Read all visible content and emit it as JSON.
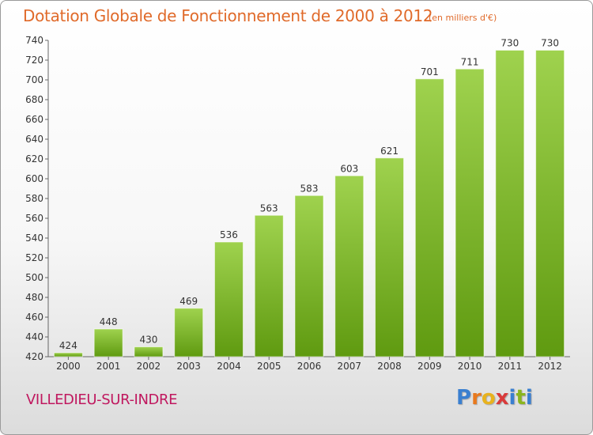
{
  "title": "Dotation Globale de Fonctionnement de 2000 à 2012",
  "subtitle": "(en milliers d'€)",
  "commune": "VILLEDIEU-SUR-INDRE",
  "logo": {
    "text": "Proxiti",
    "letter_colors": [
      "#3a7fd0",
      "#e8791e",
      "#e8b21e",
      "#d93a3a",
      "#3a7fd0",
      "#8ab51e",
      "#3a7fd0"
    ]
  },
  "colors": {
    "title": "#e06a2a",
    "commune": "#c0185f",
    "bar_top": "#9fd24e",
    "bar_bottom": "#5f9a10",
    "axis": "#666666"
  },
  "chart_data": {
    "type": "bar",
    "categories": [
      "2000",
      "2001",
      "2002",
      "2003",
      "2004",
      "2005",
      "2006",
      "2007",
      "2008",
      "2009",
      "2010",
      "2011",
      "2012"
    ],
    "values": [
      424,
      448,
      430,
      469,
      536,
      563,
      583,
      603,
      621,
      701,
      711,
      730,
      730
    ],
    "data_labels": [
      "424",
      "448",
      "430",
      "469",
      "536",
      "563",
      "583",
      "603",
      "621",
      "701",
      "711",
      "730",
      "730"
    ],
    "title": "Dotation Globale de Fonctionnement de 2000 à 2012",
    "subtitle": "(en milliers d'€)",
    "xlabel": "",
    "ylabel": "",
    "ylim": [
      420,
      740
    ],
    "yticks": [
      420,
      440,
      460,
      480,
      500,
      520,
      540,
      560,
      580,
      600,
      620,
      640,
      660,
      680,
      700,
      720,
      740
    ],
    "grid": false,
    "legend": "none"
  }
}
